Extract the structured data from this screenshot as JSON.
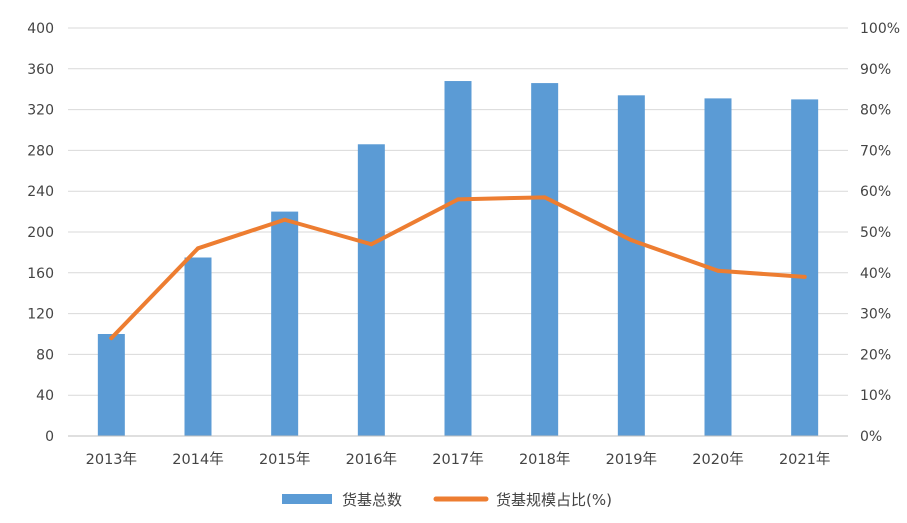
{
  "chart_data": {
    "type": "bar",
    "categories": [
      "2013年",
      "2014年",
      "2015年",
      "2016年",
      "2017年",
      "2018年",
      "2019年",
      "2020年",
      "2021年"
    ],
    "series": [
      {
        "name": "货基总数",
        "type": "bar",
        "axis": "left",
        "color": "#5b9bd5",
        "values": [
          100,
          175,
          220,
          286,
          348,
          346,
          334,
          331,
          330
        ]
      },
      {
        "name": "货基规模占比(%)",
        "type": "line",
        "axis": "right",
        "color": "#ed7d31",
        "values": [
          24,
          46,
          53,
          47,
          58,
          58.5,
          48,
          40.5,
          39
        ]
      }
    ],
    "y_left": {
      "lim": [
        0,
        400
      ],
      "ticks": [
        "0",
        "40",
        "80",
        "120",
        "160",
        "200",
        "240",
        "280",
        "320",
        "360",
        "400"
      ]
    },
    "y_right": {
      "lim": [
        0,
        100
      ],
      "ticks": [
        "0%",
        "10%",
        "20%",
        "30%",
        "40%",
        "50%",
        "60%",
        "70%",
        "80%",
        "90%",
        "100%"
      ]
    },
    "grid": true,
    "legend": {
      "placement": "bottom-center",
      "items": [
        "货基总数",
        "货基规模占比(%)"
      ]
    }
  }
}
